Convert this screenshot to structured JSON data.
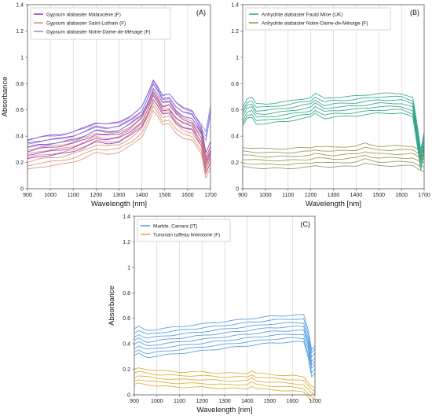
{
  "chart_data": [
    {
      "type": "line",
      "panel_label": "(A)",
      "xlabel": "Wavelength [nm]",
      "ylabel": "Absorbance",
      "xlim": [
        900,
        1700
      ],
      "ylim": [
        0,
        1.4
      ],
      "xticks": [
        "900",
        "1000",
        "1100",
        "1200",
        "1300",
        "1400",
        "1500",
        "1600",
        "1700"
      ],
      "yticks": [
        "0",
        "0.2",
        "0.4",
        "0.6",
        "0.8",
        "1",
        "1.2",
        "1.4"
      ],
      "grid": "vertical",
      "legend_position": "top-left",
      "series": [
        {
          "name": "Gypsum alabaster Malaucène (F)",
          "color": "#8a1fb8",
          "count": 6,
          "x": [
            900,
            950,
            1000,
            1050,
            1100,
            1150,
            1200,
            1250,
            1300,
            1350,
            1400,
            1430,
            1450,
            1470,
            1490,
            1520,
            1550,
            1580,
            1620,
            1660,
            1680,
            1700
          ],
          "y": [
            0.3,
            0.32,
            0.33,
            0.34,
            0.36,
            0.39,
            0.43,
            0.42,
            0.43,
            0.48,
            0.55,
            0.66,
            0.75,
            0.7,
            0.64,
            0.65,
            0.58,
            0.54,
            0.52,
            0.4,
            0.2,
            0.28
          ]
        },
        {
          "name": "Gypsum alabaster Saint-Lothain (F)",
          "color": "#d9836a",
          "count": 6,
          "x": [
            900,
            950,
            1000,
            1050,
            1100,
            1150,
            1200,
            1250,
            1300,
            1350,
            1400,
            1430,
            1450,
            1470,
            1490,
            1520,
            1550,
            1580,
            1620,
            1660,
            1680,
            1700
          ],
          "y": [
            0.22,
            0.24,
            0.25,
            0.26,
            0.28,
            0.31,
            0.35,
            0.34,
            0.35,
            0.4,
            0.47,
            0.58,
            0.67,
            0.62,
            0.56,
            0.57,
            0.5,
            0.46,
            0.44,
            0.34,
            0.16,
            0.24
          ]
        },
        {
          "name": "Gypsum alabaster Notre-Dame-de-Mésage (F)",
          "color": "#7a7ce0",
          "count": 3,
          "x": [
            900,
            950,
            1000,
            1050,
            1100,
            1150,
            1200,
            1250,
            1300,
            1350,
            1400,
            1430,
            1450,
            1470,
            1490,
            1520,
            1550,
            1580,
            1620,
            1660,
            1680,
            1700
          ],
          "y": [
            0.34,
            0.36,
            0.37,
            0.38,
            0.4,
            0.43,
            0.47,
            0.46,
            0.47,
            0.52,
            0.59,
            0.7,
            0.79,
            0.74,
            0.68,
            0.69,
            0.62,
            0.58,
            0.56,
            0.46,
            0.4,
            0.6
          ]
        }
      ]
    },
    {
      "type": "line",
      "panel_label": "(B)",
      "xlabel": "Wavelength [nm]",
      "ylabel": "",
      "xlim": [
        900,
        1700
      ],
      "ylim": [
        0,
        1.4
      ],
      "xticks": [
        "900",
        "1000",
        "1100",
        "1200",
        "1300",
        "1400",
        "1500",
        "1600",
        "1700"
      ],
      "yticks": [
        "0",
        "0.2",
        "0.4",
        "0.6",
        "0.8",
        "1",
        "1.2",
        "1.4"
      ],
      "grid": "vertical",
      "legend_position": "top-left",
      "series": [
        {
          "name": "Anhydrite alabaster Fauld Mine (UK)",
          "color": "#1a9c7a",
          "count": 7,
          "x": [
            900,
            920,
            940,
            960,
            1000,
            1100,
            1200,
            1220,
            1260,
            1300,
            1400,
            1450,
            1500,
            1600,
            1650,
            1670,
            1685,
            1700
          ],
          "y": [
            0.55,
            0.61,
            0.62,
            0.57,
            0.57,
            0.59,
            0.62,
            0.65,
            0.61,
            0.62,
            0.63,
            0.64,
            0.65,
            0.65,
            0.62,
            0.4,
            0.22,
            0.35
          ]
        },
        {
          "name": "Anhydrite alabaster Notre-Dame-de-Mésage (F)",
          "color": "#8c8a4a",
          "count": 6,
          "x": [
            900,
            1000,
            1100,
            1200,
            1220,
            1300,
            1400,
            1440,
            1460,
            1500,
            1600,
            1650,
            1680,
            1700
          ],
          "y": [
            0.24,
            0.23,
            0.23,
            0.24,
            0.25,
            0.24,
            0.25,
            0.27,
            0.26,
            0.25,
            0.25,
            0.25,
            0.22,
            0.21
          ]
        }
      ]
    },
    {
      "type": "line",
      "panel_label": "(C)",
      "xlabel": "Wavelength [nm]",
      "ylabel": "Absorbance",
      "xlim": [
        900,
        1700
      ],
      "ylim": [
        0,
        1.4
      ],
      "xticks": [
        "900",
        "1000",
        "1100",
        "1200",
        "1300",
        "1400",
        "1500",
        "1600",
        "1700"
      ],
      "yticks": [
        "0",
        "0.2",
        "0.4",
        "0.6",
        "0.8",
        "1",
        "1.2",
        "1.4"
      ],
      "grid": "vertical",
      "legend_position": "top-left",
      "series": [
        {
          "name": "Marble, Carrara (IT)",
          "color": "#3d8fe0",
          "count": 8,
          "x": [
            900,
            920,
            940,
            960,
            1000,
            1100,
            1200,
            1300,
            1400,
            1500,
            1600,
            1650,
            1670,
            1685,
            1700
          ],
          "y": [
            0.41,
            0.43,
            0.41,
            0.4,
            0.41,
            0.43,
            0.45,
            0.47,
            0.49,
            0.51,
            0.52,
            0.52,
            0.4,
            0.25,
            0.28
          ]
        },
        {
          "name": "Turonian tuffeau limestone (F)",
          "color": "#d4a21e",
          "count": 5,
          "x": [
            900,
            920,
            960,
            1000,
            1100,
            1200,
            1300,
            1400,
            1420,
            1440,
            1500,
            1600,
            1650,
            1680,
            1700
          ],
          "y": [
            0.14,
            0.15,
            0.14,
            0.13,
            0.12,
            0.12,
            0.11,
            0.11,
            0.13,
            0.11,
            0.1,
            0.09,
            0.08,
            0.02,
            0.0
          ]
        }
      ]
    }
  ]
}
